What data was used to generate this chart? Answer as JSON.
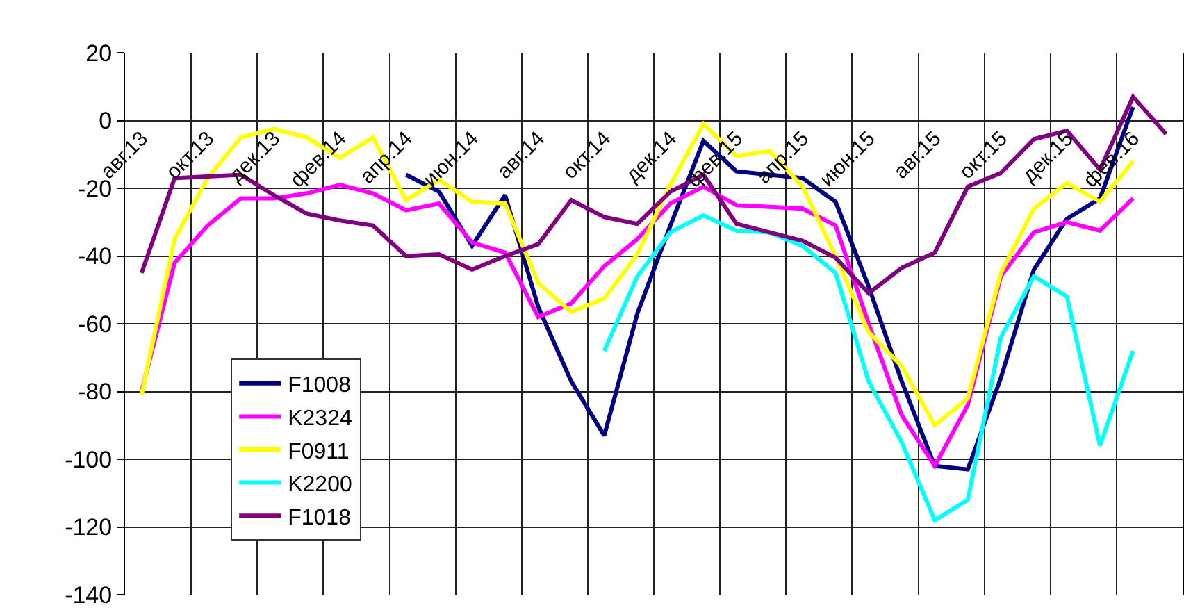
{
  "chart_data": {
    "type": "line",
    "categories": [
      "авг.13",
      null,
      "окт.13",
      null,
      "дек.13",
      null,
      "фев.14",
      null,
      "апр.14",
      null,
      "июн.14",
      null,
      "авг.14",
      null,
      "окт.14",
      null,
      "дек.14",
      null,
      "фев.15",
      null,
      "апр.15",
      null,
      "июн.15",
      null,
      "авг.15",
      null,
      "окт.15",
      null,
      "дек.15",
      null,
      "фев.16",
      null
    ],
    "series": [
      {
        "name": "F1008",
        "color": "#000080",
        "values": [
          null,
          null,
          null,
          null,
          null,
          null,
          null,
          null,
          -16,
          -21,
          -37,
          -22,
          -55,
          -77,
          -93,
          -57,
          -31,
          -6,
          -15,
          -16,
          -17,
          -24,
          -49,
          -77,
          -102,
          -103,
          -76,
          -44,
          -29,
          -23,
          4,
          null
        ]
      },
      {
        "name": "K2324",
        "color": "#ff00ff",
        "values": [
          -80,
          -42,
          -31,
          -23,
          -23,
          -21.5,
          -19,
          -21.5,
          -26.5,
          -24.5,
          -36,
          -39,
          -58,
          -54,
          -43,
          -35,
          -24.5,
          -19.5,
          -25,
          -25.5,
          -26,
          -31,
          -60,
          -87,
          -102,
          -84,
          -46,
          -33,
          -30,
          -32.5,
          -23,
          null
        ]
      },
      {
        "name": "F0911",
        "color": "#ffff00",
        "values": [
          -81,
          -35,
          -17,
          -5,
          -2.5,
          -5,
          -11,
          -5,
          -23.5,
          -17.5,
          -24,
          -24.5,
          -48,
          -56.5,
          -52.5,
          -39.5,
          -19,
          -1,
          -10.5,
          -9,
          -19.5,
          -40,
          -62.5,
          -72.5,
          -90,
          -82,
          -45,
          -26,
          -18.5,
          -24,
          -12,
          null
        ]
      },
      {
        "name": "K2200",
        "color": "#00ffff",
        "values": [
          null,
          null,
          null,
          null,
          null,
          null,
          null,
          null,
          null,
          null,
          null,
          null,
          null,
          null,
          -68,
          -46,
          -33,
          -28,
          -32.5,
          -33,
          -37,
          -45,
          -77,
          -95,
          -118,
          -112,
          -64,
          -46,
          -52,
          -96,
          -68,
          null
        ]
      },
      {
        "name": "F1018",
        "color": "#800080",
        "values": [
          -45,
          -17,
          -16.5,
          -16,
          -22,
          -27.5,
          -29.5,
          -31,
          -40,
          -39.5,
          -44,
          -40,
          -36.5,
          -23.5,
          -28.5,
          -30.5,
          -21,
          -16,
          -30.5,
          -33,
          -35.5,
          -40.5,
          -51,
          -43.5,
          -39,
          -19.5,
          -15.5,
          -5.5,
          -3,
          -14.5,
          7,
          -4
        ]
      }
    ],
    "ylim": [
      -140,
      20
    ],
    "yticks": [
      -140,
      -120,
      -100,
      -80,
      -60,
      -40,
      -20,
      0,
      20
    ],
    "grid": true,
    "legend": "bottom left"
  }
}
